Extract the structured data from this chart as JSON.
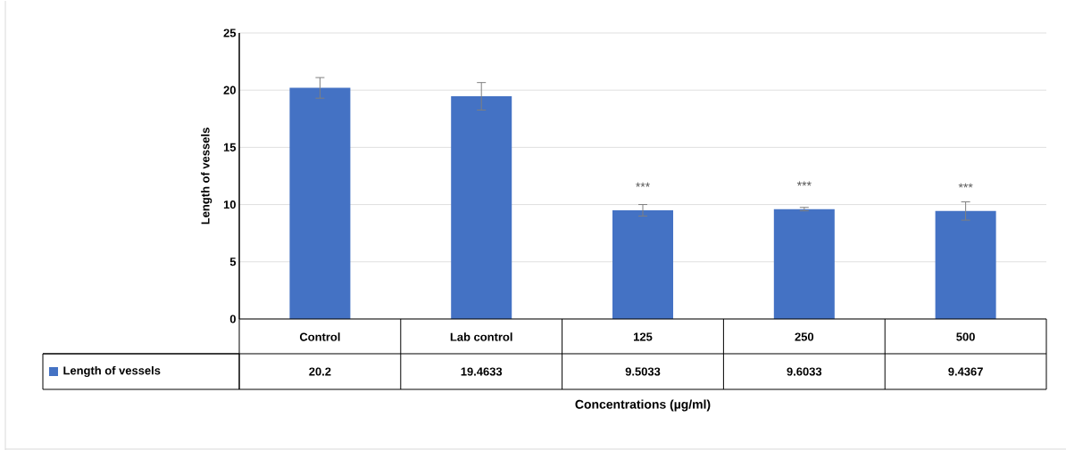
{
  "chart_data": {
    "type": "bar",
    "xlabel": "Concentrations (µg/ml)",
    "ylabel": "Length of vessels",
    "categories": [
      "Control",
      "Lab control",
      "125",
      "250",
      "500"
    ],
    "series": [
      {
        "name": "Length of vessels",
        "color": "#4472c4",
        "values": [
          20.2,
          19.4633,
          9.5033,
          9.6033,
          9.4367
        ],
        "errors": [
          0.9,
          1.2,
          0.5,
          0.15,
          0.8
        ]
      }
    ],
    "ylim": [
      0,
      25
    ],
    "yticks": [
      0,
      5,
      10,
      15,
      20,
      25
    ],
    "grid": true,
    "legend": "bottom",
    "data_labels": true,
    "annotations": [
      {
        "text": "***",
        "x": "125",
        "y": 9.5033
      },
      {
        "text": "***",
        "x": "250",
        "y": 9.6033
      },
      {
        "text": "***",
        "x": "500",
        "y": 9.4367
      }
    ]
  }
}
